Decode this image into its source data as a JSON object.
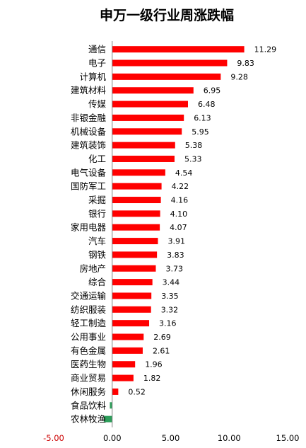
{
  "chart_data": {
    "type": "bar",
    "orientation": "horizontal",
    "title": "申万一级行业周涨跌幅",
    "categories": [
      "通信",
      "电子",
      "计算机",
      "建筑材料",
      "传媒",
      "非银金融",
      "机械设备",
      "建筑装饰",
      "化工",
      "电气设备",
      "国防军工",
      "采掘",
      "银行",
      "家用电器",
      "汽车",
      "钢铁",
      "房地产",
      "综合",
      "交通运输",
      "纺织服装",
      "轻工制造",
      "公用事业",
      "有色金属",
      "医药生物",
      "商业贸易",
      "休闲服务",
      "食品饮料",
      "农林牧渔"
    ],
    "values": [
      11.29,
      9.83,
      9.28,
      6.95,
      6.48,
      6.13,
      5.95,
      5.38,
      5.33,
      4.54,
      4.22,
      4.16,
      4.1,
      4.07,
      3.91,
      3.83,
      3.73,
      3.44,
      3.35,
      3.32,
      3.16,
      2.69,
      2.61,
      1.96,
      1.82,
      0.52,
      -0.2,
      -0.72
    ],
    "value_labels": [
      "11.29",
      "9.83",
      "9.28",
      "6.95",
      "6.48",
      "6.13",
      "5.95",
      "5.38",
      "5.33",
      "4.54",
      "4.22",
      "4.16",
      "4.10",
      "4.07",
      "3.91",
      "3.83",
      "3.73",
      "3.44",
      "3.35",
      "3.32",
      "3.16",
      "2.69",
      "2.61",
      "1.96",
      "1.82",
      "0.52",
      "",
      ""
    ],
    "xlim": [
      -5,
      15
    ],
    "x_ticks": [
      "-5.00",
      "0.00",
      "5.00",
      "10.00",
      "15.00"
    ],
    "x_tick_values": [
      -5,
      0,
      5,
      10,
      15
    ],
    "grid": false,
    "legend": "none",
    "colors": {
      "positive": "#ff0000",
      "negative": "#2e9e5b",
      "negative_tick": "#cc0000"
    }
  }
}
